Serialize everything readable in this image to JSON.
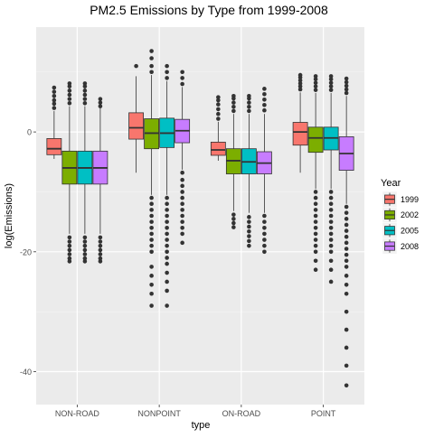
{
  "chart_data": {
    "type": "boxplot",
    "title": "PM2.5 Emissions by Type from 1999-2008",
    "xlabel": "type",
    "ylabel": "log(Emissions)",
    "ylim": [
      -45.5,
      17.5
    ],
    "yticks": [
      0,
      -20,
      -40
    ],
    "categories": [
      "NON-ROAD",
      "NONPOINT",
      "ON-ROAD",
      "POINT"
    ],
    "legend": {
      "title": "Year",
      "position": "right"
    },
    "grid": true,
    "series": [
      {
        "name": "1999",
        "color": "#F8766D"
      },
      {
        "name": "2002",
        "color": "#7CAE00"
      },
      {
        "name": "2005",
        "color": "#00BFC4"
      },
      {
        "name": "2008",
        "color": "#C77CFF"
      }
    ],
    "boxes": [
      {
        "category": "NON-ROAD",
        "series": "1999",
        "whisker_low": -4.5,
        "q1": -3.8,
        "median": -2.8,
        "q3": -1.1,
        "whisker_high": 3.5,
        "outliers": [
          4.0,
          4.7,
          5.3,
          6.0,
          6.7,
          7.4
        ]
      },
      {
        "category": "NON-ROAD",
        "series": "2002",
        "whisker_low": -17.0,
        "q1": -8.7,
        "median": -6.0,
        "q3": -3.2,
        "whisker_high": 4.3,
        "outliers": [
          -17.6,
          -18.3,
          -19.0,
          -19.7,
          -20.4,
          -21.1,
          -21.6,
          4.8,
          5.5,
          6.2,
          6.9,
          7.6,
          8.1
        ]
      },
      {
        "category": "NON-ROAD",
        "series": "2005",
        "whisker_low": -17.0,
        "q1": -8.7,
        "median": -6.0,
        "q3": -3.2,
        "whisker_high": 4.3,
        "outliers": [
          -17.6,
          -18.3,
          -19.0,
          -19.7,
          -20.4,
          -21.1,
          -21.6,
          4.8,
          5.5,
          6.2,
          6.9,
          7.6,
          8.1
        ]
      },
      {
        "category": "NON-ROAD",
        "series": "2008",
        "whisker_low": -17.0,
        "q1": -8.7,
        "median": -6.0,
        "q3": -3.2,
        "whisker_high": 4.3,
        "outliers": [
          -17.6,
          -18.3,
          -19.0,
          -19.7,
          -20.4,
          -21.1,
          -21.6,
          4.3,
          4.9,
          5.5
        ]
      },
      {
        "category": "NONPOINT",
        "series": "1999",
        "whisker_low": -6.8,
        "q1": -1.2,
        "median": 0.7,
        "q3": 3.2,
        "whisker_high": 9.3,
        "outliers": [
          11.0
        ]
      },
      {
        "category": "NONPOINT",
        "series": "2002",
        "whisker_low": -10.5,
        "q1": -2.8,
        "median": -0.2,
        "q3": 2.2,
        "whisker_high": 9.5,
        "outliers": [
          -11.0,
          -12.0,
          -13.0,
          -14.0,
          -15.0,
          -16.0,
          -17.0,
          -18.0,
          -19.0,
          -20.0,
          -22.5,
          -24.0,
          -25.5,
          -27.0,
          -29.0,
          10.0,
          11.0,
          12.3,
          13.5
        ]
      },
      {
        "category": "NONPOINT",
        "series": "2005",
        "whisker_low": -10.5,
        "q1": -2.6,
        "median": -0.2,
        "q3": 2.3,
        "whisker_high": 8.5,
        "outliers": [
          -11.0,
          -12.0,
          -13.0,
          -14.0,
          -15.0,
          -16.0,
          -17.0,
          -18.0,
          -19.0,
          -20.0,
          -21.0,
          -22.0,
          -23.5,
          -25.0,
          -26.5,
          -29.0,
          9.0,
          10.0,
          11.0
        ]
      },
      {
        "category": "NONPOINT",
        "series": "2008",
        "whisker_low": -6.3,
        "q1": -1.8,
        "median": 0.2,
        "q3": 2.1,
        "whisker_high": 7.5,
        "outliers": [
          -6.8,
          -8.0,
          -9.0,
          -10.0,
          -11.0,
          -12.0,
          -13.0,
          -14.0,
          -15.0,
          -16.0,
          -17.0,
          -18.5,
          8.0,
          9.0,
          10.0
        ]
      },
      {
        "category": "ON-ROAD",
        "series": "1999",
        "whisker_low": -4.8,
        "q1": -3.9,
        "median": -3.0,
        "q3": -1.7,
        "whisker_high": 1.7,
        "outliers": [
          2.2,
          3.0,
          3.8,
          4.6,
          5.3,
          5.8
        ]
      },
      {
        "category": "ON-ROAD",
        "series": "2002",
        "whisker_low": -13.2,
        "q1": -7.0,
        "median": -4.8,
        "q3": -2.8,
        "whisker_high": 3.0,
        "outliers": [
          -13.8,
          -14.5,
          -15.2,
          -15.9,
          3.5,
          4.2,
          4.9,
          5.6,
          6.0
        ]
      },
      {
        "category": "ON-ROAD",
        "series": "2005",
        "whisker_low": -13.5,
        "q1": -7.0,
        "median": -5.0,
        "q3": -2.8,
        "whisker_high": 3.0,
        "outliers": [
          -14.2,
          -15.0,
          -15.8,
          -16.6,
          -17.4,
          -18.2,
          -19.0,
          3.5,
          4.2,
          4.9,
          5.6,
          6.0
        ]
      },
      {
        "category": "ON-ROAD",
        "series": "2008",
        "whisker_low": -13.5,
        "q1": -7.0,
        "median": -5.2,
        "q3": -3.3,
        "whisker_high": 3.0,
        "outliers": [
          -14.0,
          -15.0,
          -16.0,
          -17.0,
          -18.0,
          -19.0,
          -20.0,
          3.6,
          4.5,
          5.4,
          6.3,
          7.2
        ]
      },
      {
        "category": "POINT",
        "series": "1999",
        "whisker_low": -6.8,
        "q1": -2.2,
        "median": 0.0,
        "q3": 1.6,
        "whisker_high": 6.6,
        "outliers": [
          7.1,
          7.6,
          8.1,
          8.6,
          9.1,
          9.5
        ]
      },
      {
        "category": "POINT",
        "series": "2002",
        "whisker_low": -9.5,
        "q1": -3.4,
        "median": -1.0,
        "q3": 0.8,
        "whisker_high": 6.5,
        "outliers": [
          -10.0,
          -11.0,
          -12.0,
          -13.0,
          -14.0,
          -15.0,
          -16.0,
          -17.0,
          -18.0,
          -19.0,
          -20.0,
          -21.5,
          -23.0,
          7.0,
          7.6,
          8.2,
          8.8,
          9.3
        ]
      },
      {
        "category": "POINT",
        "series": "2005",
        "whisker_low": -9.5,
        "q1": -3.0,
        "median": -1.0,
        "q3": 0.8,
        "whisker_high": 6.5,
        "outliers": [
          -10.0,
          -11.0,
          -12.0,
          -13.0,
          -14.0,
          -15.0,
          -16.0,
          -17.0,
          -18.0,
          -19.0,
          -20.0,
          -21.5,
          -23.0,
          -25.0,
          7.0,
          7.6,
          8.2,
          8.8,
          9.3
        ]
      },
      {
        "category": "POINT",
        "series": "2008",
        "whisker_low": -12.0,
        "q1": -6.4,
        "median": -3.6,
        "q3": -0.8,
        "whisker_high": 6.0,
        "outliers": [
          -12.5,
          -13.5,
          -14.5,
          -15.5,
          -16.5,
          -17.5,
          -18.5,
          -19.5,
          -20.5,
          -21.5,
          -22.5,
          -24.0,
          -25.5,
          -27.0,
          -30.0,
          -33.0,
          -36.0,
          -39.0,
          -42.3,
          6.5,
          7.1,
          7.7,
          8.3,
          8.9
        ]
      }
    ]
  }
}
